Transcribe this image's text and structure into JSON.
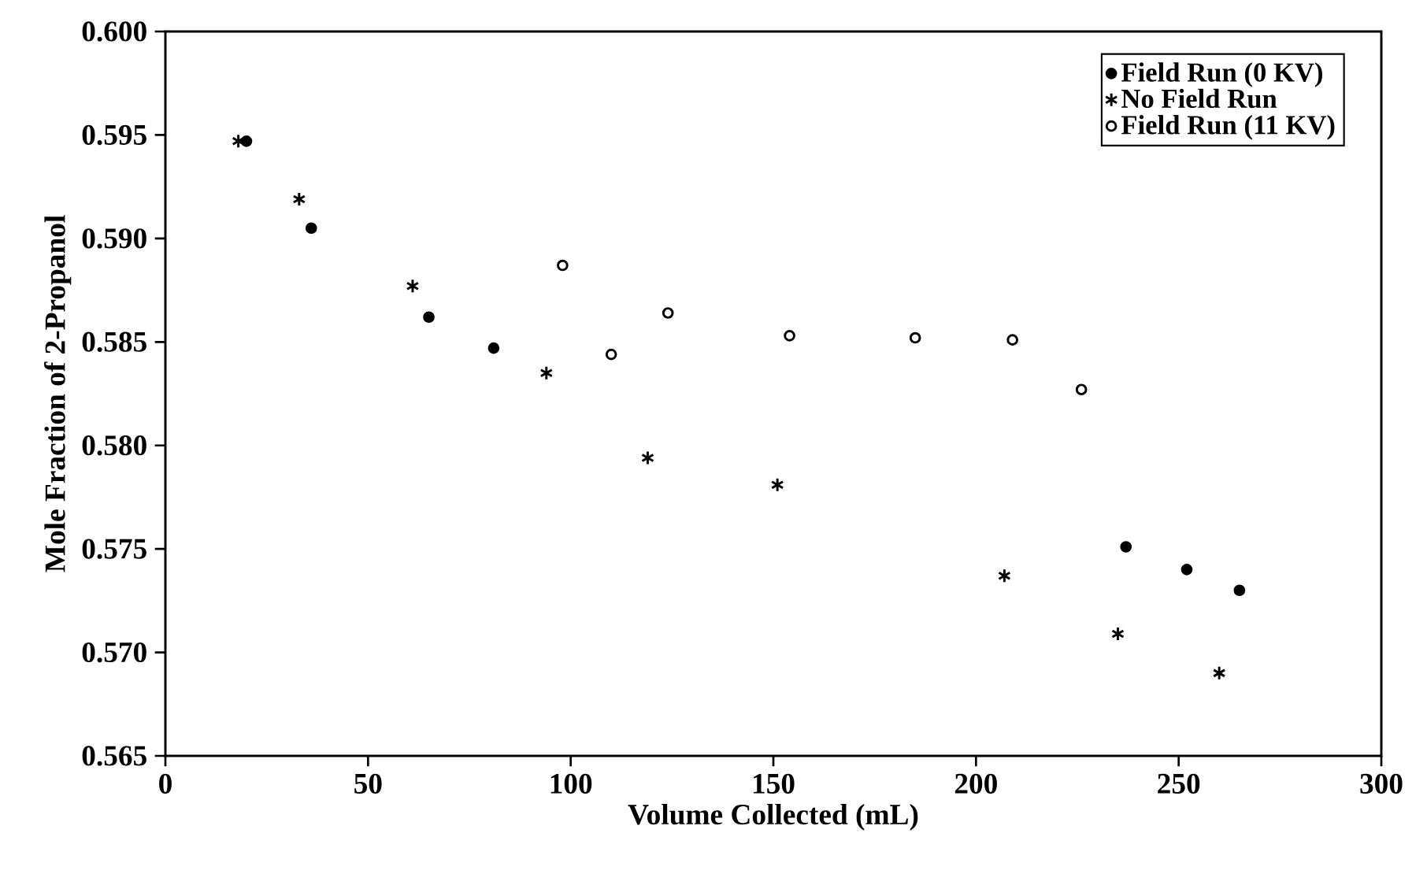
{
  "chart_data": {
    "type": "scatter",
    "xlabel": "Volume Collected (mL)",
    "ylabel": "Mole Fraction of 2-Propanol",
    "xlim": [
      0,
      300
    ],
    "xticks": [
      0,
      50,
      100,
      150,
      200,
      250,
      300
    ],
    "ylim": [
      0.565,
      0.6
    ],
    "yticks": [
      {
        "value": 0.565,
        "label": "0.565"
      },
      {
        "value": 0.57,
        "label": "0.570"
      },
      {
        "value": 0.575,
        "label": "0.575"
      },
      {
        "value": 0.58,
        "label": "0.580"
      },
      {
        "value": 0.585,
        "label": "0.585"
      },
      {
        "value": 0.59,
        "label": "0.590"
      },
      {
        "value": 0.595,
        "label": "0.595"
      },
      {
        "value": 0.6,
        "label": "0.600"
      }
    ],
    "grid": false,
    "legend": "top right",
    "series": [
      {
        "name": "Field Run (0 KV)",
        "color": "#000000",
        "marker": "circle",
        "x": [
          20,
          36,
          65,
          81,
          237,
          252,
          265
        ],
        "values": [
          0.5947,
          0.5905,
          0.5862,
          0.5847,
          0.5751,
          0.574,
          0.573
        ]
      },
      {
        "name": "No Field Run",
        "color": "#000000",
        "marker": "cross",
        "x": [
          18,
          33,
          61,
          94,
          119,
          151,
          207,
          235,
          260
        ],
        "values": [
          0.5947,
          0.5919,
          0.5877,
          0.5835,
          0.5794,
          0.5781,
          0.5737,
          0.5709,
          0.569
        ]
      },
      {
        "name": "Field Run (11 KV)",
        "color": "#000000",
        "marker": "circle",
        "x": [
          98,
          110,
          124,
          154,
          185,
          209,
          226
        ],
        "values": [
          0.5887,
          0.5844,
          0.5864,
          0.5853,
          0.5852,
          0.5851,
          0.5827
        ]
      }
    ]
  }
}
